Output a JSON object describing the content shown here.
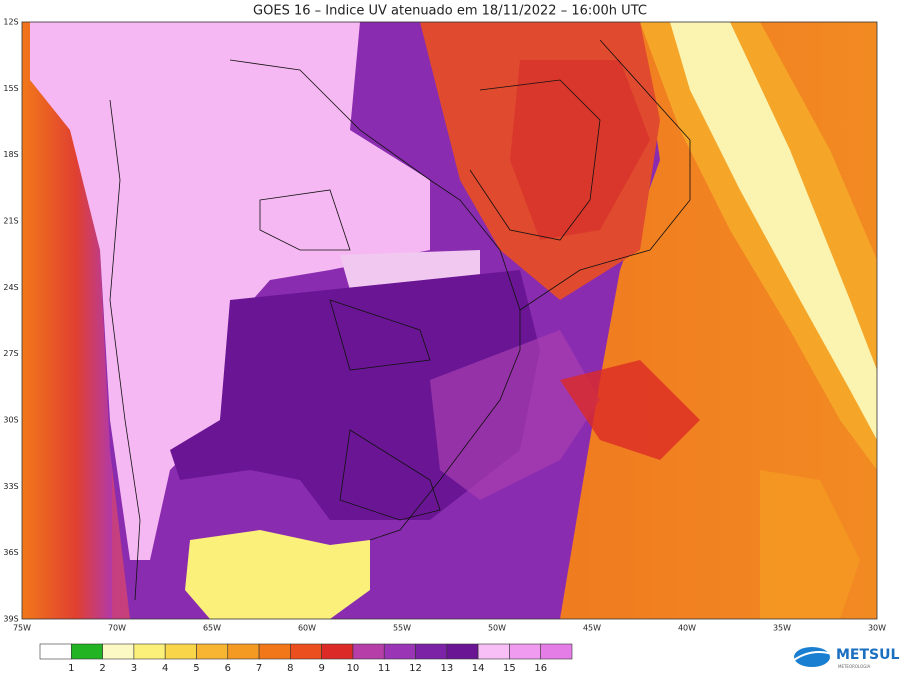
{
  "header": {
    "title": "GOES 16 – Indice UV atenuado em 18/11/2022 – 16:00h UTC"
  },
  "map": {
    "lat_labels": [
      "12S",
      "15S",
      "18S",
      "21S",
      "24S",
      "27S",
      "30S",
      "33S",
      "36S",
      "39S"
    ],
    "lon_labels": [
      "75W",
      "70W",
      "65W",
      "60W",
      "55W",
      "50W",
      "45W",
      "40W",
      "35W",
      "30W"
    ]
  },
  "legend": {
    "labels": [
      "1",
      "2",
      "3",
      "4",
      "5",
      "6",
      "7",
      "8",
      "9",
      "10",
      "11",
      "12",
      "13",
      "14",
      "15",
      "16"
    ],
    "colors": [
      "#ffffff",
      "#22b422",
      "#fdf9c4",
      "#faf07a",
      "#f9d54a",
      "#f7b532",
      "#f49a22",
      "#f27718",
      "#ec4f1e",
      "#dc2a26",
      "#b63ea8",
      "#9a35b6",
      "#7c22a6",
      "#6a1694",
      "#f8bff6",
      "#f09af0",
      "#e57de6"
    ]
  },
  "logo": {
    "name": "METSUL",
    "tagline": "METEOROLOGIA"
  }
}
